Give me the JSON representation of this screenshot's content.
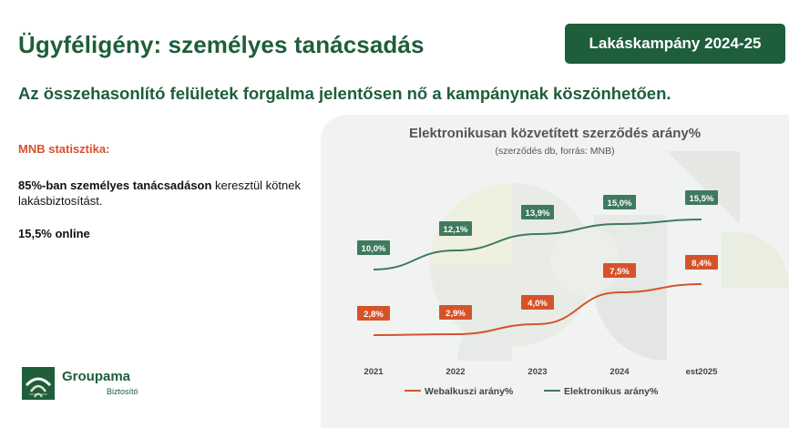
{
  "header": {
    "title": "Ügyféligény: személyes tanácsadás",
    "badge": "Lakáskampány 2024-25",
    "subtitle": "Az összehasonlító felületek forgalma jelentősen nő a kampánynak köszönhetően."
  },
  "left": {
    "mnb_label": "MNB statisztika:",
    "para1_bold": "85%-ban személyes tanácsadáson",
    "para1_rest": " keresztül kötnek lakásbiztosítást.",
    "para2": "15,5% online"
  },
  "logo": {
    "name": "Groupama",
    "sub": "Biztosító"
  },
  "colors": {
    "brand_green": "#1e5e3b",
    "accent_orange": "#d6532a",
    "line_green": "#3f7a5e",
    "line_orange": "#d6532a"
  },
  "chart_data": {
    "type": "line",
    "title": "Elektronikusan közvetített szerződés arány%",
    "subtitle": "(szerződés db, forrás: MNB)",
    "categories": [
      "2021",
      "2022",
      "2023",
      "2024",
      "est2025"
    ],
    "series": [
      {
        "name": "Elektronikus arány%",
        "values": [
          10.0,
          12.1,
          13.9,
          15.0,
          15.5
        ],
        "labels": [
          "10,0%",
          "12,1%",
          "13,9%",
          "15,0%",
          "15,5%"
        ],
        "color": "#3f7a5e"
      },
      {
        "name": "Webalkuszi arány%",
        "values": [
          2.8,
          2.9,
          4.0,
          7.5,
          8.4
        ],
        "labels": [
          "2,8%",
          "2,9%",
          "4,0%",
          "7,5%",
          "8,4%"
        ],
        "color": "#d6532a"
      }
    ],
    "legend": [
      "Webalkuszi arány%",
      "Elektronikus arány%"
    ],
    "legend_position": "bottom",
    "grid": false,
    "y_axis_visible": false,
    "ylim": [
      0,
      20
    ]
  }
}
